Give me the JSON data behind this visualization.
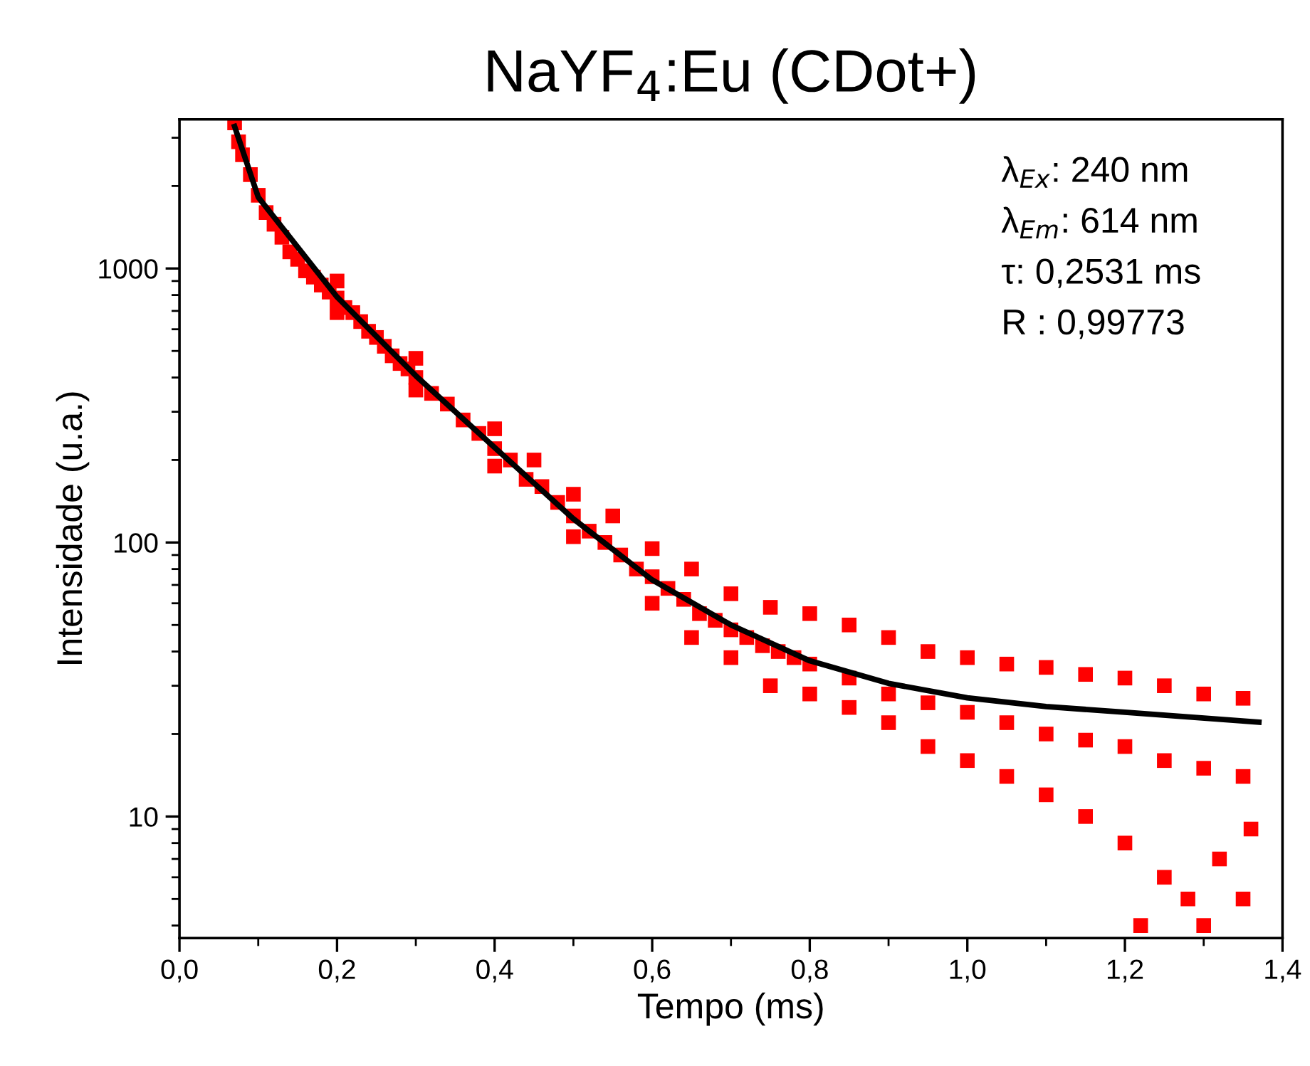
{
  "chart_data": {
    "type": "scatter",
    "title": "NaYF$_{4}$:Eu (CDot+)",
    "xlabel": "Tempo (ms)",
    "ylabel": "Intensidade (u.a.)",
    "log": "y",
    "xlim": [
      0.0,
      1.4
    ],
    "ylim": [
      3.6,
      3500
    ],
    "xticks": [
      {
        "value": 0.0,
        "label": "0,0"
      },
      {
        "value": 0.2,
        "label": "0,2"
      },
      {
        "value": 0.4,
        "label": "0,4"
      },
      {
        "value": 0.6,
        "label": "0,6"
      },
      {
        "value": 0.8,
        "label": "0,8"
      },
      {
        "value": 1.0,
        "label": "1,0"
      },
      {
        "value": 1.2,
        "label": "1,2"
      },
      {
        "value": 1.4,
        "label": "1,4"
      }
    ],
    "yticks": [
      10,
      100,
      1000
    ],
    "grid": false,
    "series": [
      {
        "color": "#ff0000",
        "marker": "square",
        "x": [
          0.07,
          0.075,
          0.08,
          0.09,
          0.1,
          0.11,
          0.12,
          0.13,
          0.14,
          0.15,
          0.16,
          0.17,
          0.18,
          0.19,
          0.2,
          0.21,
          0.22,
          0.23,
          0.24,
          0.25,
          0.26,
          0.27,
          0.28,
          0.29,
          0.3,
          0.32,
          0.34,
          0.36,
          0.38,
          0.4,
          0.42,
          0.44,
          0.46,
          0.48,
          0.5,
          0.52,
          0.54,
          0.56,
          0.58,
          0.6,
          0.62,
          0.64,
          0.66,
          0.68,
          0.7,
          0.72,
          0.74,
          0.76,
          0.78,
          0.8,
          0.2,
          0.3,
          0.4,
          0.45,
          0.5,
          0.55,
          0.6,
          0.65,
          0.7,
          0.75,
          0.8,
          0.85,
          0.9,
          0.95,
          1.0,
          1.05,
          1.1,
          1.15,
          1.2,
          1.25,
          1.3,
          1.35,
          0.2,
          0.3,
          0.4,
          0.5,
          0.6,
          0.65,
          0.7,
          0.75,
          0.8,
          0.85,
          0.9,
          0.95,
          1.0,
          1.05,
          1.1,
          1.15,
          1.2,
          1.22,
          1.25,
          1.28,
          1.3,
          1.32,
          1.35,
          1.36,
          0.85,
          0.9,
          0.95,
          1.0,
          1.05,
          1.1,
          1.15,
          1.2,
          1.25,
          1.3,
          1.35
        ],
        "values": [
          3400,
          2900,
          2600,
          2200,
          1850,
          1600,
          1450,
          1300,
          1150,
          1080,
          980,
          930,
          870,
          820,
          780,
          720,
          690,
          640,
          590,
          560,
          520,
          480,
          450,
          430,
          400,
          350,
          320,
          280,
          250,
          220,
          200,
          170,
          160,
          140,
          125,
          110,
          100,
          90,
          80,
          75,
          68,
          62,
          55,
          52,
          48,
          45,
          42,
          40,
          38,
          36,
          900,
          470,
          260,
          200,
          150,
          125,
          95,
          80,
          65,
          58,
          55,
          50,
          45,
          40,
          38,
          36,
          35,
          33,
          32,
          30,
          28,
          27,
          690,
          360,
          190,
          105,
          60,
          45,
          38,
          30,
          28,
          25,
          22,
          18,
          16,
          14,
          12,
          10,
          8,
          4,
          6,
          5,
          4,
          7,
          5,
          9,
          32,
          28,
          26,
          24,
          22,
          20,
          19,
          18,
          16,
          15,
          14
        ]
      },
      {
        "type": "line",
        "color": "#000000",
        "line_style": "solid",
        "marker": "none",
        "x": [
          0.07,
          0.1,
          0.2,
          0.3,
          0.4,
          0.5,
          0.6,
          0.7,
          0.8,
          0.9,
          1.0,
          1.1,
          1.2,
          1.37
        ],
        "values": [
          3300,
          1820,
          787,
          406,
          222,
          122,
          73,
          50,
          37,
          30.6,
          27.1,
          25.2,
          24,
          22.1
        ]
      }
    ],
    "annotations": [
      "λ$_{Ex}$: 240 nm",
      "λ$_{Em}$: 614 nm",
      "τ: 0,2531 ms",
      "R : 0,99773"
    ]
  }
}
